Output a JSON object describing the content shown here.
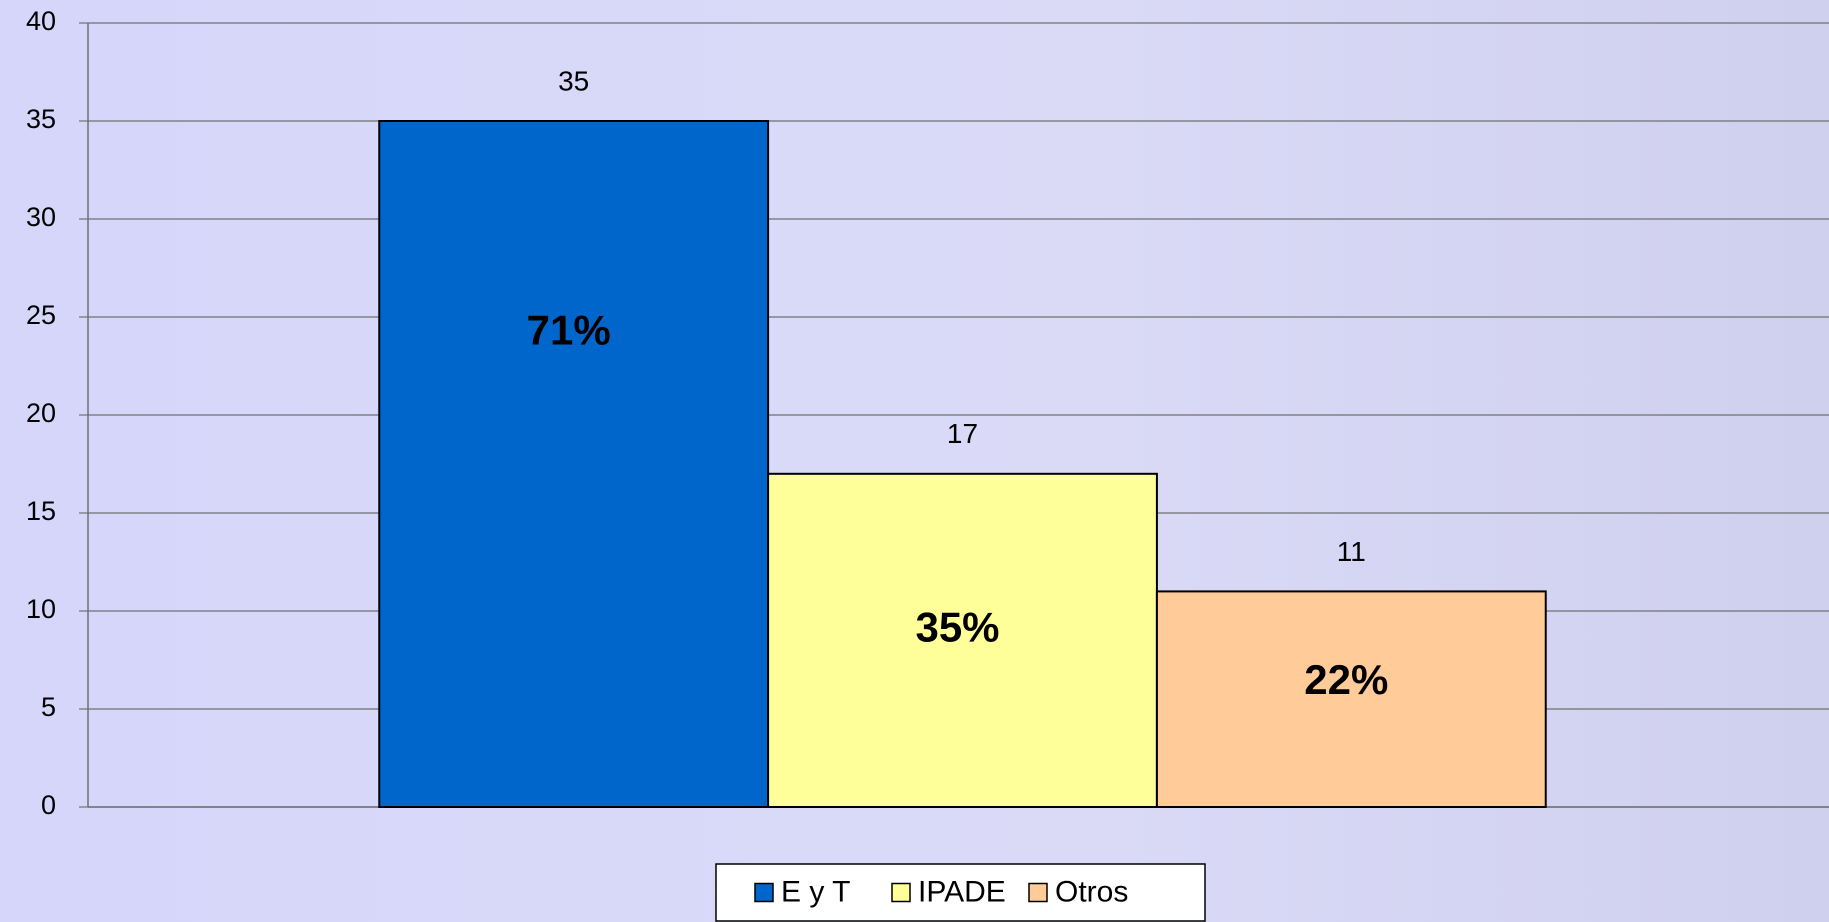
{
  "chart_data": {
    "type": "bar",
    "categories": [
      null
    ],
    "series": [
      {
        "name": "E y T",
        "color": "#0066cc",
        "values": [
          35
        ],
        "annotation": "71%"
      },
      {
        "name": "IPADE",
        "color": "#ffff99",
        "values": [
          17
        ],
        "annotation": "35%"
      },
      {
        "name": "Otros",
        "color": "#ffcc99",
        "values": [
          11
        ],
        "annotation": "22%"
      }
    ],
    "ylim": [
      0,
      40
    ],
    "yticks": [
      0,
      5,
      10,
      15,
      20,
      25,
      30,
      35,
      40
    ],
    "grid": true,
    "legend": "bottom"
  }
}
